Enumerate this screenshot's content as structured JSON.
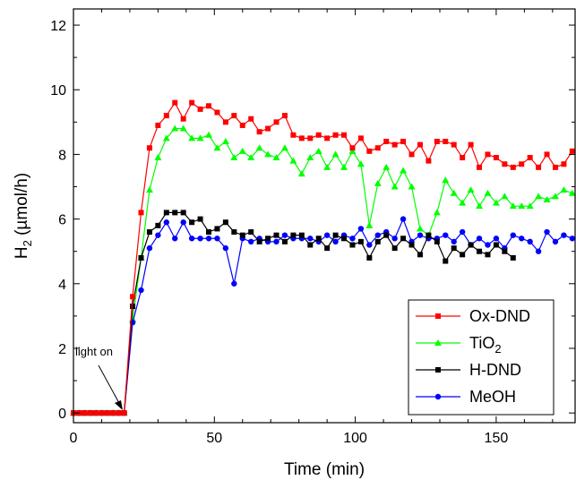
{
  "chart_data": {
    "type": "line",
    "xlabel": "Time (min)",
    "ylabel_main": "H",
    "ylabel_sub": "2",
    "ylabel_rest": " (µmol/h)",
    "xlim": [
      0,
      178
    ],
    "ylim": [
      -0.3,
      12.5
    ],
    "x_ticks": [
      0,
      50,
      100,
      150
    ],
    "y_ticks": [
      0,
      2,
      4,
      6,
      8,
      10,
      12
    ],
    "x_minor_step": 10,
    "y_minor_step": 1,
    "grid": false,
    "legend_position": "bottom-right",
    "annotation": {
      "text": "light on",
      "x": 18,
      "y": 0
    },
    "series": [
      {
        "name": "Ox-DND",
        "color": "#ff0000",
        "marker": "square",
        "x": [
          0,
          2,
          4,
          6,
          8,
          10,
          12,
          14,
          16,
          18,
          21,
          24,
          27,
          30,
          33,
          36,
          39,
          42,
          45,
          48,
          51,
          54,
          57,
          60,
          63,
          66,
          69,
          72,
          75,
          78,
          81,
          84,
          87,
          90,
          93,
          96,
          99,
          102,
          105,
          108,
          111,
          114,
          117,
          120,
          123,
          126,
          129,
          132,
          135,
          138,
          141,
          144,
          147,
          150,
          153,
          156,
          159,
          162,
          165,
          168,
          171,
          174,
          177
        ],
        "y": [
          0,
          0,
          0,
          0,
          0,
          0,
          0,
          0,
          0,
          0,
          3.6,
          6.2,
          8.2,
          8.9,
          9.2,
          9.6,
          9.1,
          9.6,
          9.4,
          9.5,
          9.3,
          9.0,
          9.2,
          8.9,
          9.1,
          8.7,
          8.8,
          9.0,
          9.2,
          8.6,
          8.5,
          8.5,
          8.6,
          8.5,
          8.6,
          8.6,
          8.2,
          8.5,
          8.1,
          8.2,
          8.4,
          8.3,
          8.4,
          8.0,
          8.3,
          7.8,
          8.4,
          8.4,
          8.3,
          7.9,
          8.3,
          7.6,
          8.0,
          7.9,
          7.7,
          7.6,
          7.7,
          7.9,
          7.6,
          8.0,
          7.6,
          7.7,
          8.1
        ]
      },
      {
        "name": "TiO2",
        "name_main": "TiO",
        "name_sub": "2",
        "color": "#00ff00",
        "marker": "triangle",
        "x": [
          0,
          2,
          4,
          6,
          8,
          10,
          12,
          14,
          16,
          18,
          21,
          24,
          27,
          30,
          33,
          36,
          39,
          42,
          45,
          48,
          51,
          54,
          57,
          60,
          63,
          66,
          69,
          72,
          75,
          78,
          81,
          84,
          87,
          90,
          93,
          96,
          99,
          102,
          105,
          108,
          111,
          114,
          117,
          120,
          123,
          126,
          129,
          132,
          135,
          138,
          141,
          144,
          147,
          150,
          153,
          156,
          159,
          162,
          165,
          168,
          171,
          174,
          177
        ],
        "y": [
          0,
          0,
          0,
          0,
          0,
          0,
          0,
          0,
          0,
          0,
          2.9,
          4.8,
          6.9,
          7.9,
          8.5,
          8.8,
          8.8,
          8.5,
          8.5,
          8.6,
          8.2,
          8.4,
          7.9,
          8.1,
          7.9,
          8.2,
          8.0,
          7.9,
          8.2,
          7.8,
          7.4,
          7.9,
          8.1,
          7.6,
          8.0,
          7.6,
          8.1,
          7.7,
          5.8,
          7.1,
          7.6,
          7.0,
          7.5,
          7.0,
          5.7,
          5.5,
          6.2,
          7.2,
          6.8,
          6.5,
          6.9,
          6.4,
          6.8,
          6.5,
          6.7,
          6.4,
          6.4,
          6.4,
          6.7,
          6.6,
          6.7,
          6.9,
          6.8
        ]
      },
      {
        "name": "H-DND",
        "color": "#000000",
        "marker": "square",
        "x": [
          0,
          2,
          4,
          6,
          8,
          10,
          12,
          14,
          16,
          18,
          21,
          24,
          27,
          30,
          33,
          36,
          39,
          42,
          45,
          48,
          51,
          54,
          57,
          60,
          63,
          66,
          69,
          72,
          75,
          78,
          81,
          84,
          87,
          90,
          93,
          96,
          99,
          102,
          105,
          108,
          111,
          114,
          117,
          120,
          123,
          126,
          129,
          132,
          135,
          138,
          141,
          144,
          147,
          150,
          153,
          156
        ],
        "y": [
          0,
          0,
          0,
          0,
          0,
          0,
          0,
          0,
          0,
          0,
          3.3,
          4.8,
          5.6,
          5.8,
          6.2,
          6.2,
          6.2,
          5.9,
          6.0,
          5.6,
          5.7,
          5.9,
          5.6,
          5.5,
          5.6,
          5.3,
          5.4,
          5.5,
          5.3,
          5.5,
          5.5,
          5.2,
          5.4,
          5.1,
          5.5,
          5.4,
          5.2,
          5.3,
          4.8,
          5.3,
          5.5,
          5.1,
          5.4,
          5.2,
          4.9,
          5.5,
          5.3,
          4.7,
          5.1,
          4.9,
          5.2,
          5.0,
          4.9,
          5.2,
          5.0,
          4.8
        ]
      },
      {
        "name": "MeOH",
        "color": "#0000ff",
        "marker": "circle",
        "x": [
          0,
          2,
          4,
          6,
          8,
          10,
          12,
          14,
          16,
          18,
          21,
          24,
          27,
          30,
          33,
          36,
          39,
          42,
          45,
          48,
          51,
          54,
          57,
          60,
          63,
          66,
          69,
          72,
          75,
          78,
          81,
          84,
          87,
          90,
          93,
          96,
          99,
          102,
          105,
          108,
          111,
          114,
          117,
          120,
          123,
          126,
          129,
          132,
          135,
          138,
          141,
          144,
          147,
          150,
          153,
          156,
          159,
          162,
          165,
          168,
          171,
          174,
          177
        ],
        "y": [
          0,
          0,
          0,
          0,
          0,
          0,
          0,
          0,
          0,
          0,
          2.8,
          3.8,
          5.1,
          5.5,
          5.9,
          5.4,
          5.9,
          5.4,
          5.4,
          5.4,
          5.4,
          5.1,
          4.0,
          5.4,
          5.3,
          5.4,
          5.3,
          5.3,
          5.5,
          5.4,
          5.4,
          5.4,
          5.3,
          5.5,
          5.3,
          5.5,
          5.4,
          5.7,
          5.2,
          5.5,
          5.6,
          5.4,
          6.0,
          5.3,
          5.5,
          5.4,
          5.4,
          5.5,
          5.3,
          5.6,
          5.2,
          5.4,
          5.2,
          5.4,
          5.1,
          5.5,
          5.4,
          5.3,
          5.0,
          5.6,
          5.3,
          5.5,
          5.4
        ]
      }
    ]
  }
}
